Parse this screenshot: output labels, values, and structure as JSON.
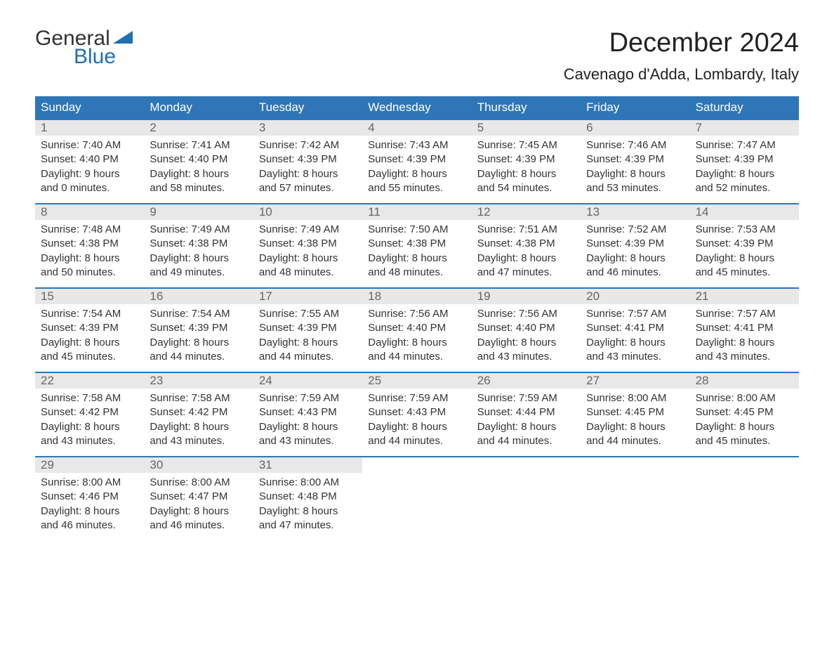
{
  "logo": {
    "general": "General",
    "blue": "Blue",
    "triangle_color": "#1f6fb2"
  },
  "title": "December 2024",
  "location": "Cavenago d'Adda, Lombardy, Italy",
  "colors": {
    "header_bg": "#2f76b8",
    "header_fg": "#ffffff",
    "daynum_bg": "#e8e8e8",
    "daynum_fg": "#666666",
    "week_border": "#2f76b8",
    "text": "#333333",
    "background": "#ffffff"
  },
  "fonts": {
    "title_size": 38,
    "location_size": 22,
    "header_size": 17,
    "body_size": 15
  },
  "day_names": [
    "Sunday",
    "Monday",
    "Tuesday",
    "Wednesday",
    "Thursday",
    "Friday",
    "Saturday"
  ],
  "weeks": [
    [
      {
        "num": "1",
        "sunrise": "Sunrise: 7:40 AM",
        "sunset": "Sunset: 4:40 PM",
        "day1": "Daylight: 9 hours",
        "day2": "and 0 minutes."
      },
      {
        "num": "2",
        "sunrise": "Sunrise: 7:41 AM",
        "sunset": "Sunset: 4:40 PM",
        "day1": "Daylight: 8 hours",
        "day2": "and 58 minutes."
      },
      {
        "num": "3",
        "sunrise": "Sunrise: 7:42 AM",
        "sunset": "Sunset: 4:39 PM",
        "day1": "Daylight: 8 hours",
        "day2": "and 57 minutes."
      },
      {
        "num": "4",
        "sunrise": "Sunrise: 7:43 AM",
        "sunset": "Sunset: 4:39 PM",
        "day1": "Daylight: 8 hours",
        "day2": "and 55 minutes."
      },
      {
        "num": "5",
        "sunrise": "Sunrise: 7:45 AM",
        "sunset": "Sunset: 4:39 PM",
        "day1": "Daylight: 8 hours",
        "day2": "and 54 minutes."
      },
      {
        "num": "6",
        "sunrise": "Sunrise: 7:46 AM",
        "sunset": "Sunset: 4:39 PM",
        "day1": "Daylight: 8 hours",
        "day2": "and 53 minutes."
      },
      {
        "num": "7",
        "sunrise": "Sunrise: 7:47 AM",
        "sunset": "Sunset: 4:39 PM",
        "day1": "Daylight: 8 hours",
        "day2": "and 52 minutes."
      }
    ],
    [
      {
        "num": "8",
        "sunrise": "Sunrise: 7:48 AM",
        "sunset": "Sunset: 4:38 PM",
        "day1": "Daylight: 8 hours",
        "day2": "and 50 minutes."
      },
      {
        "num": "9",
        "sunrise": "Sunrise: 7:49 AM",
        "sunset": "Sunset: 4:38 PM",
        "day1": "Daylight: 8 hours",
        "day2": "and 49 minutes."
      },
      {
        "num": "10",
        "sunrise": "Sunrise: 7:49 AM",
        "sunset": "Sunset: 4:38 PM",
        "day1": "Daylight: 8 hours",
        "day2": "and 48 minutes."
      },
      {
        "num": "11",
        "sunrise": "Sunrise: 7:50 AM",
        "sunset": "Sunset: 4:38 PM",
        "day1": "Daylight: 8 hours",
        "day2": "and 48 minutes."
      },
      {
        "num": "12",
        "sunrise": "Sunrise: 7:51 AM",
        "sunset": "Sunset: 4:38 PM",
        "day1": "Daylight: 8 hours",
        "day2": "and 47 minutes."
      },
      {
        "num": "13",
        "sunrise": "Sunrise: 7:52 AM",
        "sunset": "Sunset: 4:39 PM",
        "day1": "Daylight: 8 hours",
        "day2": "and 46 minutes."
      },
      {
        "num": "14",
        "sunrise": "Sunrise: 7:53 AM",
        "sunset": "Sunset: 4:39 PM",
        "day1": "Daylight: 8 hours",
        "day2": "and 45 minutes."
      }
    ],
    [
      {
        "num": "15",
        "sunrise": "Sunrise: 7:54 AM",
        "sunset": "Sunset: 4:39 PM",
        "day1": "Daylight: 8 hours",
        "day2": "and 45 minutes."
      },
      {
        "num": "16",
        "sunrise": "Sunrise: 7:54 AM",
        "sunset": "Sunset: 4:39 PM",
        "day1": "Daylight: 8 hours",
        "day2": "and 44 minutes."
      },
      {
        "num": "17",
        "sunrise": "Sunrise: 7:55 AM",
        "sunset": "Sunset: 4:39 PM",
        "day1": "Daylight: 8 hours",
        "day2": "and 44 minutes."
      },
      {
        "num": "18",
        "sunrise": "Sunrise: 7:56 AM",
        "sunset": "Sunset: 4:40 PM",
        "day1": "Daylight: 8 hours",
        "day2": "and 44 minutes."
      },
      {
        "num": "19",
        "sunrise": "Sunrise: 7:56 AM",
        "sunset": "Sunset: 4:40 PM",
        "day1": "Daylight: 8 hours",
        "day2": "and 43 minutes."
      },
      {
        "num": "20",
        "sunrise": "Sunrise: 7:57 AM",
        "sunset": "Sunset: 4:41 PM",
        "day1": "Daylight: 8 hours",
        "day2": "and 43 minutes."
      },
      {
        "num": "21",
        "sunrise": "Sunrise: 7:57 AM",
        "sunset": "Sunset: 4:41 PM",
        "day1": "Daylight: 8 hours",
        "day2": "and 43 minutes."
      }
    ],
    [
      {
        "num": "22",
        "sunrise": "Sunrise: 7:58 AM",
        "sunset": "Sunset: 4:42 PM",
        "day1": "Daylight: 8 hours",
        "day2": "and 43 minutes."
      },
      {
        "num": "23",
        "sunrise": "Sunrise: 7:58 AM",
        "sunset": "Sunset: 4:42 PM",
        "day1": "Daylight: 8 hours",
        "day2": "and 43 minutes."
      },
      {
        "num": "24",
        "sunrise": "Sunrise: 7:59 AM",
        "sunset": "Sunset: 4:43 PM",
        "day1": "Daylight: 8 hours",
        "day2": "and 43 minutes."
      },
      {
        "num": "25",
        "sunrise": "Sunrise: 7:59 AM",
        "sunset": "Sunset: 4:43 PM",
        "day1": "Daylight: 8 hours",
        "day2": "and 44 minutes."
      },
      {
        "num": "26",
        "sunrise": "Sunrise: 7:59 AM",
        "sunset": "Sunset: 4:44 PM",
        "day1": "Daylight: 8 hours",
        "day2": "and 44 minutes."
      },
      {
        "num": "27",
        "sunrise": "Sunrise: 8:00 AM",
        "sunset": "Sunset: 4:45 PM",
        "day1": "Daylight: 8 hours",
        "day2": "and 44 minutes."
      },
      {
        "num": "28",
        "sunrise": "Sunrise: 8:00 AM",
        "sunset": "Sunset: 4:45 PM",
        "day1": "Daylight: 8 hours",
        "day2": "and 45 minutes."
      }
    ],
    [
      {
        "num": "29",
        "sunrise": "Sunrise: 8:00 AM",
        "sunset": "Sunset: 4:46 PM",
        "day1": "Daylight: 8 hours",
        "day2": "and 46 minutes."
      },
      {
        "num": "30",
        "sunrise": "Sunrise: 8:00 AM",
        "sunset": "Sunset: 4:47 PM",
        "day1": "Daylight: 8 hours",
        "day2": "and 46 minutes."
      },
      {
        "num": "31",
        "sunrise": "Sunrise: 8:00 AM",
        "sunset": "Sunset: 4:48 PM",
        "day1": "Daylight: 8 hours",
        "day2": "and 47 minutes."
      },
      null,
      null,
      null,
      null
    ]
  ]
}
